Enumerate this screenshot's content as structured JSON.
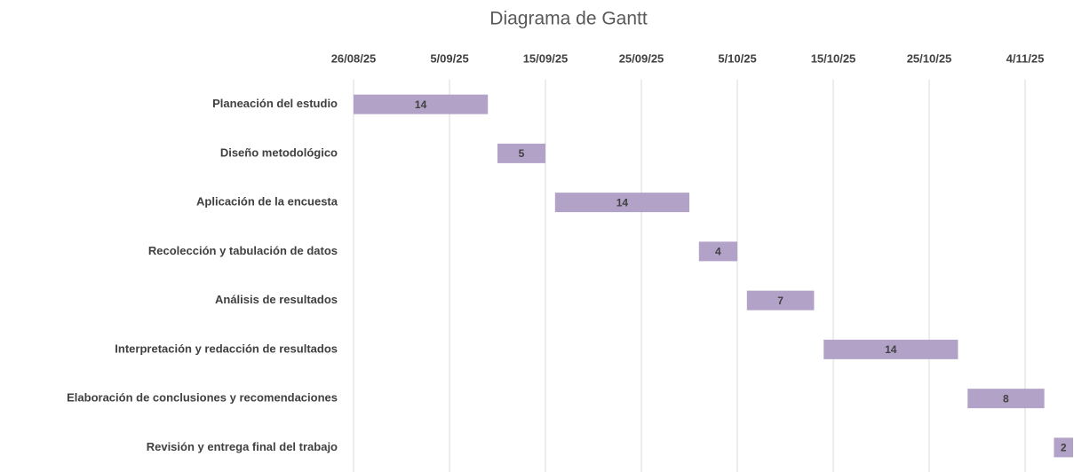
{
  "chart_data": {
    "type": "gantt",
    "title": "Diagrama de Gantt",
    "categories": [
      "Planeación del estudio",
      "Diseño metodológico",
      "Aplicación de la encuesta",
      "Recolección y tabulación de datos",
      "Análisis de resultados",
      "Interpretación y redacción de resultados",
      "Elaboración de conclusiones y recomendaciones",
      "Revisión y entrega final del trabajo"
    ],
    "starts": [
      45895,
      45910,
      45916,
      45931,
      45936,
      45944,
      45959,
      45968
    ],
    "values": [
      14,
      5,
      14,
      4,
      7,
      14,
      8,
      2
    ],
    "color": "#b3a2c7",
    "xlim": [
      45895,
      45970
    ],
    "xticks": [
      {
        "value": 45895,
        "label": "26/08/25"
      },
      {
        "value": 45905,
        "label": "5/09/25"
      },
      {
        "value": 45915,
        "label": "15/09/25"
      },
      {
        "value": 45925,
        "label": "25/09/25"
      },
      {
        "value": 45935,
        "label": "5/10/25"
      },
      {
        "value": 45945,
        "label": "15/10/25"
      },
      {
        "value": 45955,
        "label": "25/10/25"
      },
      {
        "value": 45965,
        "label": "4/11/25"
      }
    ],
    "grid": true
  }
}
